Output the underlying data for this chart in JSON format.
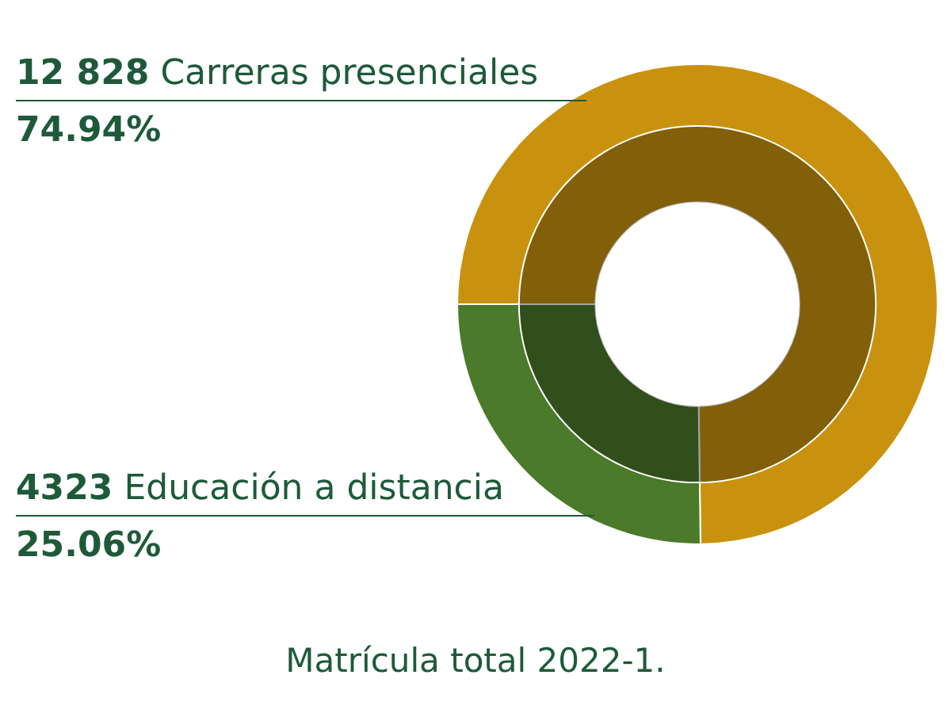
{
  "chart_data": {
    "type": "donut",
    "title": "Matrícula total 2022-1.",
    "categories": [
      "Carreras presenciales",
      "Educación a distancia"
    ],
    "values": [
      12828,
      4323
    ],
    "value_labels": [
      "12 828",
      "4323"
    ],
    "colors": [
      "#c8920f",
      "#4a7a2a"
    ],
    "annotations": [
      "74.94%",
      "25.06%"
    ],
    "legend": false
  }
}
